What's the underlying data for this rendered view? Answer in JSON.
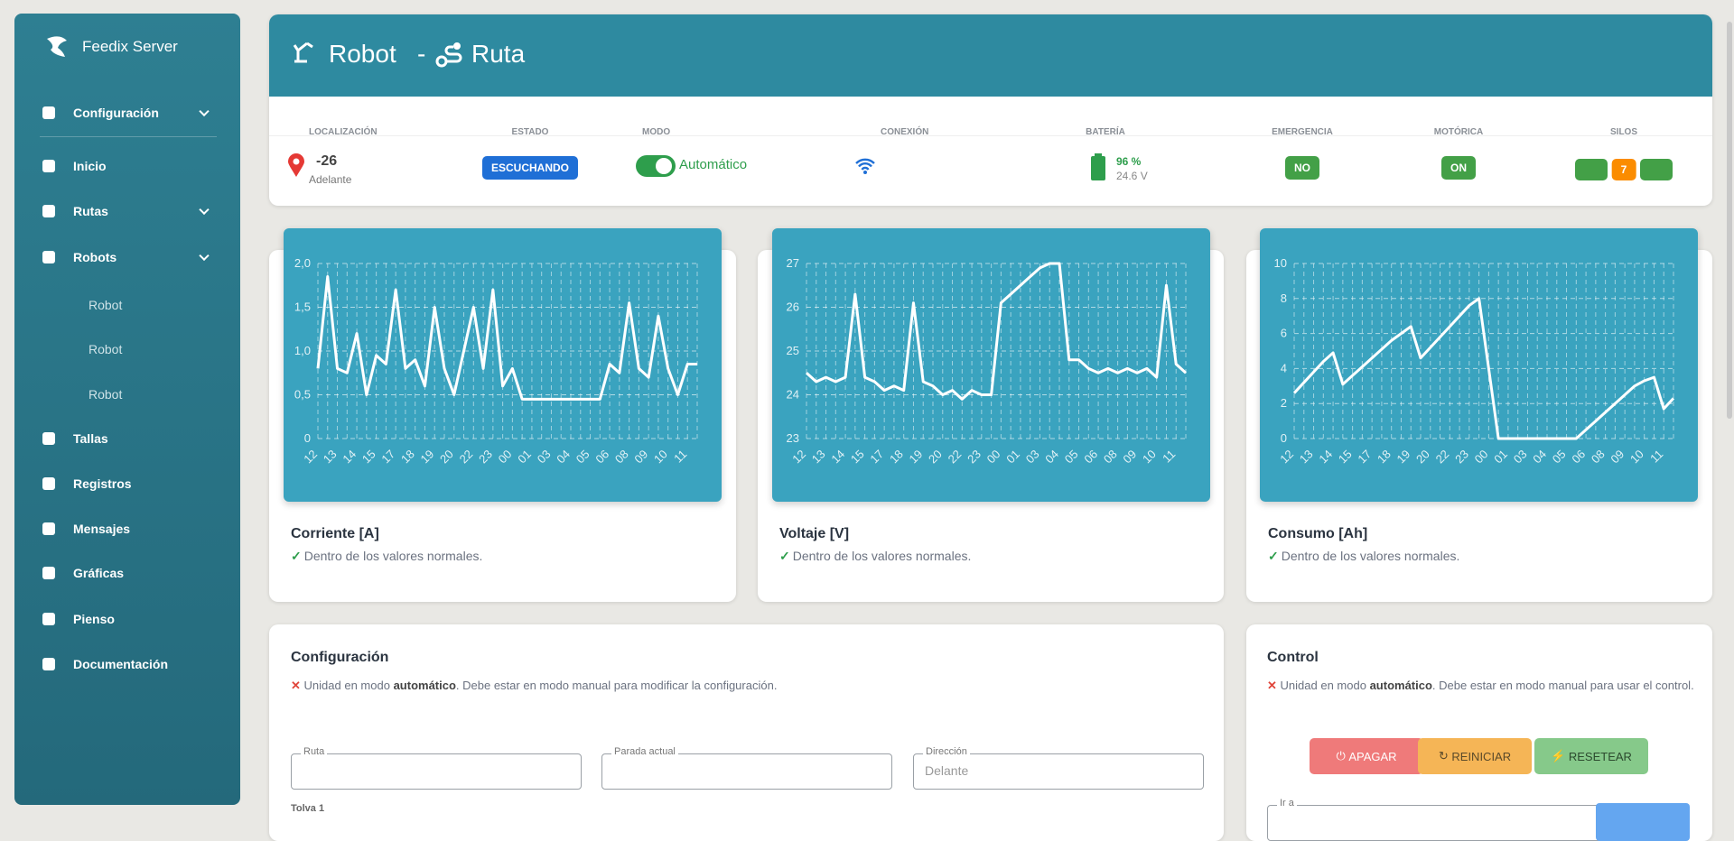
{
  "sidebar": {
    "brand": "Feedix Server",
    "items": [
      "Configuración",
      "Inicio",
      "Rutas",
      "Robots",
      "Robot",
      "Robot",
      "Robot",
      "Tallas",
      "Registros",
      "Mensajes",
      "Gráficas",
      "Pienso",
      "Documentación"
    ]
  },
  "header": {
    "robot": "Robot",
    "separator": "-",
    "route": "Ruta"
  },
  "status": {
    "labels": [
      "LOCALIZACIÓN",
      "ESTADO",
      "MODO",
      "CONEXIÓN",
      "BATERÍA",
      "EMERGENCIA",
      "MOTÓRICA",
      "SILOS"
    ],
    "location": "-26",
    "direction": "Adelante",
    "state": "ESCUCHANDO",
    "mode": "Automático",
    "battery": "96 %",
    "voltage": "24.6 V",
    "emergency": "NO",
    "motor": "ON",
    "silo": "7"
  },
  "chart_data": [
    {
      "type": "line",
      "title": "Corriente [A]",
      "subtitle": "Dentro de los valores normales.",
      "color": "#ffffff",
      "grid": true,
      "categories": [
        "12",
        null,
        "13",
        null,
        "14",
        null,
        "15",
        null,
        "17",
        null,
        "18",
        null,
        "19",
        null,
        "20",
        null,
        "22",
        null,
        "23",
        null,
        "00",
        null,
        "01",
        null,
        "03",
        null,
        "04",
        null,
        "05",
        null,
        "06",
        null,
        "08",
        null,
        "09",
        null,
        "10",
        null,
        "11",
        null
      ],
      "values": [
        0.8,
        1.85,
        0.8,
        0.75,
        1.2,
        0.5,
        0.95,
        0.85,
        1.7,
        0.8,
        0.9,
        0.6,
        1.5,
        0.8,
        0.5,
        1.0,
        1.5,
        0.8,
        1.7,
        0.6,
        0.8,
        0.45,
        0.45,
        0.45,
        0.45,
        0.45,
        0.45,
        0.45,
        0.45,
        0.45,
        0.85,
        0.75,
        1.55,
        0.8,
        0.7,
        1.4,
        0.8,
        0.5,
        0.85,
        0.85
      ],
      "ylim": [
        0,
        2
      ],
      "yticks": [
        0,
        {
          "value": 0.5,
          "label": "0,5"
        },
        {
          "value": 1,
          "label": "1,0"
        },
        {
          "value": 1.5,
          "label": "1,5"
        },
        {
          "value": 2,
          "label": "2,0"
        }
      ]
    },
    {
      "type": "line",
      "title": "Voltaje [V]",
      "subtitle": "Dentro de los valores normales.",
      "color": "#ffffff",
      "grid": true,
      "categories": [
        "12",
        null,
        "13",
        null,
        "14",
        null,
        "15",
        null,
        "17",
        null,
        "18",
        null,
        "19",
        null,
        "20",
        null,
        "22",
        null,
        "23",
        null,
        "00",
        null,
        "01",
        null,
        "03",
        null,
        "04",
        null,
        "05",
        null,
        "06",
        null,
        "08",
        null,
        "09",
        null,
        "10",
        null,
        "11",
        null
      ],
      "values": [
        24.5,
        24.3,
        24.4,
        24.3,
        24.4,
        26.3,
        24.4,
        24.3,
        24.1,
        24.2,
        24.1,
        26.1,
        24.3,
        24.2,
        24.0,
        24.1,
        23.9,
        24.1,
        24.0,
        24.0,
        26.1,
        26.3,
        26.5,
        26.7,
        26.9,
        27.0,
        27.0,
        24.8,
        24.8,
        24.6,
        24.5,
        24.6,
        24.5,
        24.6,
        24.5,
        24.6,
        24.4,
        26.5,
        24.7,
        24.5
      ],
      "ylim": [
        23,
        27
      ],
      "yticks": [
        23,
        24,
        25,
        26,
        27
      ]
    },
    {
      "type": "line",
      "title": "Consumo [Ah]",
      "subtitle": "Dentro de los valores normales.",
      "color": "#ffffff",
      "grid": true,
      "categories": [
        "12",
        null,
        "13",
        null,
        "14",
        null,
        "15",
        null,
        "17",
        null,
        "18",
        null,
        "19",
        null,
        "20",
        null,
        "22",
        null,
        "23",
        null,
        "00",
        null,
        "01",
        null,
        "03",
        null,
        "04",
        null,
        "05",
        null,
        "06",
        null,
        "08",
        null,
        "09",
        null,
        "10",
        null,
        "11",
        null
      ],
      "values": [
        2.6,
        3.2,
        3.8,
        4.4,
        4.9,
        3.1,
        3.6,
        4.1,
        4.6,
        5.1,
        5.6,
        6.0,
        6.4,
        4.6,
        5.2,
        5.8,
        6.4,
        7.0,
        7.6,
        8.0,
        4.0,
        0,
        0,
        0,
        0,
        0,
        0,
        0,
        0,
        0,
        0.5,
        1.0,
        1.5,
        2.0,
        2.5,
        3.0,
        3.3,
        3.5,
        1.7,
        2.3
      ],
      "ylim": [
        0,
        10
      ],
      "yticks": [
        0,
        2,
        4,
        6,
        8,
        10
      ]
    }
  ],
  "config": {
    "title": "Configuración",
    "msg_pre": "Unidad en modo",
    "msg_bold": "automático",
    "msg_post": ". Debe estar en modo manual para modificar la configuración.",
    "fields": [
      "Ruta",
      "Parada actual",
      "Dirección"
    ],
    "placeholder": "Delante",
    "hopper": "Tolva 1"
  },
  "control": {
    "title": "Control",
    "msg_pre": "Unidad en modo",
    "msg_bold": "automático",
    "msg_post": ". Debe estar en modo manual para usar el control.",
    "buttons": [
      "APAGAR",
      "REINICIAR",
      "RESETEAR"
    ],
    "goto": "Ir a"
  }
}
